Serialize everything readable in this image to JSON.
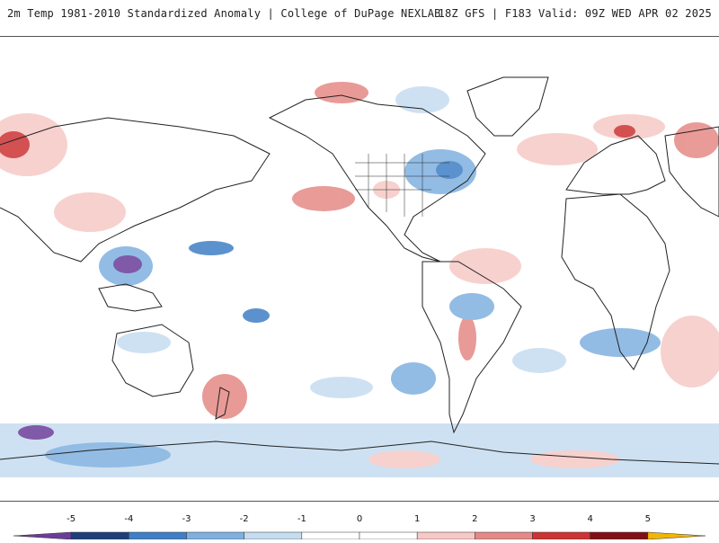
{
  "header": {
    "title": "2m Temp 1981-2010 Standardized Anomaly | College of DuPage NEXLAB",
    "run_info": "18Z GFS | F183 Valid: 09Z WED APR 02 2025"
  },
  "legend": {
    "ticks": [
      "-5",
      "-4",
      "-3",
      "-2",
      "-1",
      "0",
      "1",
      "2",
      "3",
      "4",
      "5"
    ],
    "colors": [
      "#6a3d9a",
      "#1f3f78",
      "#3f7fc6",
      "#7fb1e0",
      "#c6dcf0",
      "#ffffff",
      "#ffffff",
      "#f6c9c6",
      "#e58986",
      "#cc3333",
      "#7f1016",
      "#f2b600"
    ]
  },
  "colors": {
    "land_outline": "#222222",
    "background": "#ffffff"
  }
}
